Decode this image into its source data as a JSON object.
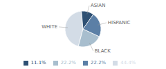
{
  "chart_data": {
    "type": "pie",
    "categories": [
      "WHITE",
      "BLACK",
      "HISPANIC",
      "ASIAN"
    ],
    "values": [
      44.4,
      22.2,
      22.2,
      11.1
    ],
    "value_labels": [
      "44.4%",
      "22.2%",
      "22.2%",
      "11.1%"
    ],
    "colors": [
      "#d3dce6",
      "#a8bece",
      "#5b7fa6",
      "#2e5073"
    ],
    "legend": "bottom"
  }
}
